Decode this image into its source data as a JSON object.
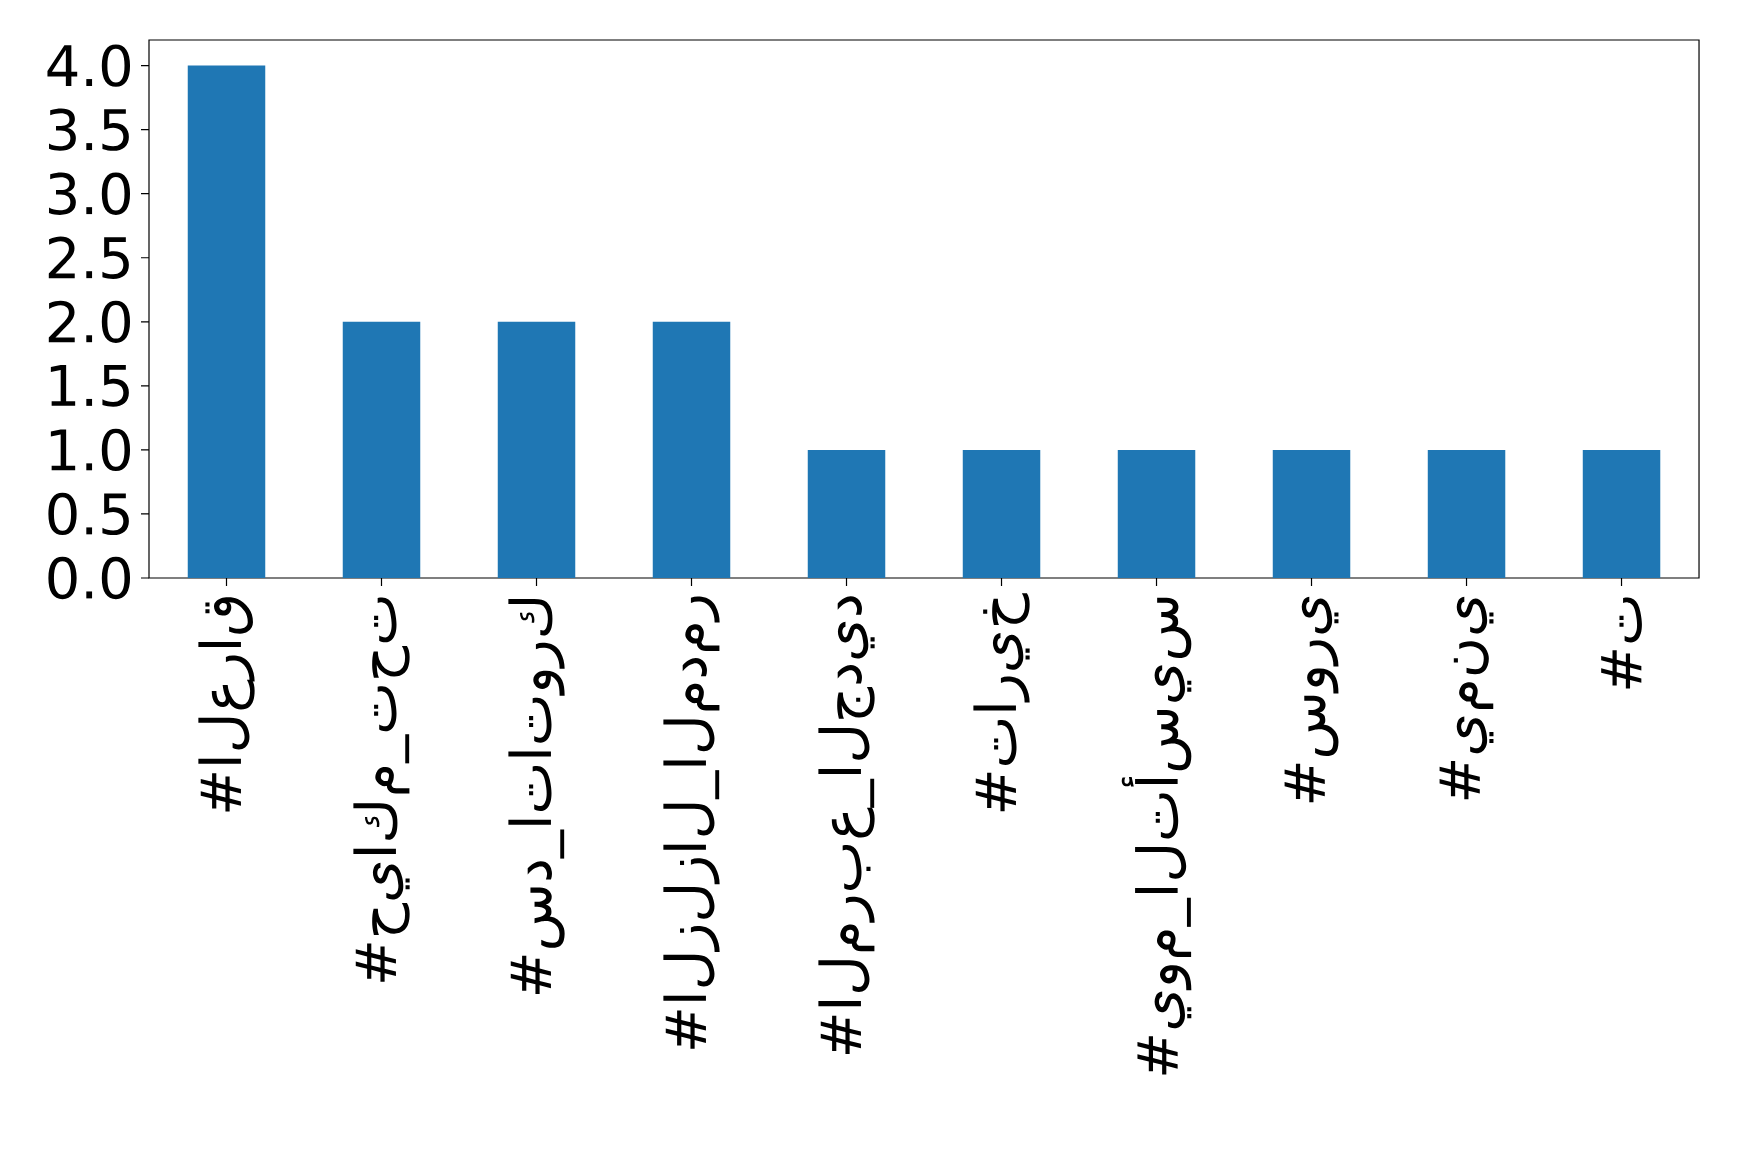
{
  "chart_data": {
    "type": "bar",
    "categories": [
      "#العراق",
      "#حياكم_تحت",
      "#سد_اتاتورك",
      "#الزلزال_المدمر",
      "#المربع_الجديد",
      "#تاريخ",
      "#يوم_التأسيس",
      "#سوري",
      "#يمني",
      "#ت"
    ],
    "values": [
      4,
      2,
      2,
      2,
      1,
      1,
      1,
      1,
      1,
      1
    ],
    "color": "#1f77b4",
    "ylim": [
      0,
      4.2
    ],
    "yticks": [
      {
        "value": 0,
        "label": "0.0"
      },
      {
        "value": 0.5,
        "label": "0.5"
      },
      {
        "value": 1,
        "label": "1.0"
      },
      {
        "value": 1.5,
        "label": "1.5"
      },
      {
        "value": 2,
        "label": "2.0"
      },
      {
        "value": 2.5,
        "label": "2.5"
      },
      {
        "value": 3,
        "label": "3.0"
      },
      {
        "value": 3.5,
        "label": "3.5"
      },
      {
        "value": 4,
        "label": "4.0"
      }
    ]
  }
}
